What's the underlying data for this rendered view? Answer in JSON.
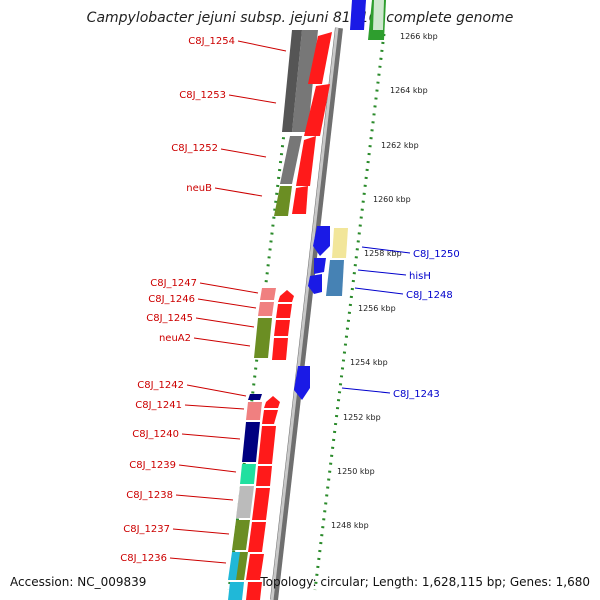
{
  "title": "Campylobacter jejuni subsp. jejuni 81116, complete genome",
  "accession": "Accession: NC_009839",
  "topology": "Topology: circular; Length: 1,628,115 bp; Genes: 1,680",
  "colors": {
    "left_label": "#cc0000",
    "right_label": "#0000cc",
    "backbone": "#9a9a9a",
    "tick": "#2a8a2a"
  },
  "scale_labels": [
    {
      "label": "1266 kbp",
      "kbp": 1266
    },
    {
      "label": "1264 kbp",
      "kbp": 1264
    },
    {
      "label": "1262 kbp",
      "kbp": 1262
    },
    {
      "label": "1260 kbp",
      "kbp": 1260
    },
    {
      "label": "1258 kbp",
      "kbp": 1258
    },
    {
      "label": "1256 kbp",
      "kbp": 1256
    },
    {
      "label": "1254 kbp",
      "kbp": 1254
    },
    {
      "label": "1252 kbp",
      "kbp": 1252
    },
    {
      "label": "1250 kbp",
      "kbp": 1250
    },
    {
      "label": "1248 kbp",
      "kbp": 1248
    }
  ],
  "left_genes": [
    {
      "label": "C8J_1254"
    },
    {
      "label": "C8J_1253"
    },
    {
      "label": "C8J_1252"
    },
    {
      "label": "neuB"
    },
    {
      "label": "C8J_1247"
    },
    {
      "label": "C8J_1246"
    },
    {
      "label": "C8J_1245"
    },
    {
      "label": "neuA2"
    },
    {
      "label": "C8J_1242"
    },
    {
      "label": "C8J_1241"
    },
    {
      "label": "C8J_1240"
    },
    {
      "label": "C8J_1239"
    },
    {
      "label": "C8J_1238"
    },
    {
      "label": "C8J_1237"
    },
    {
      "label": "C8J_1236"
    }
  ],
  "right_genes": [
    {
      "label": "C8J_1250"
    },
    {
      "label": "hisH"
    },
    {
      "label": "C8J_1248"
    },
    {
      "label": "C8J_1243"
    }
  ]
}
